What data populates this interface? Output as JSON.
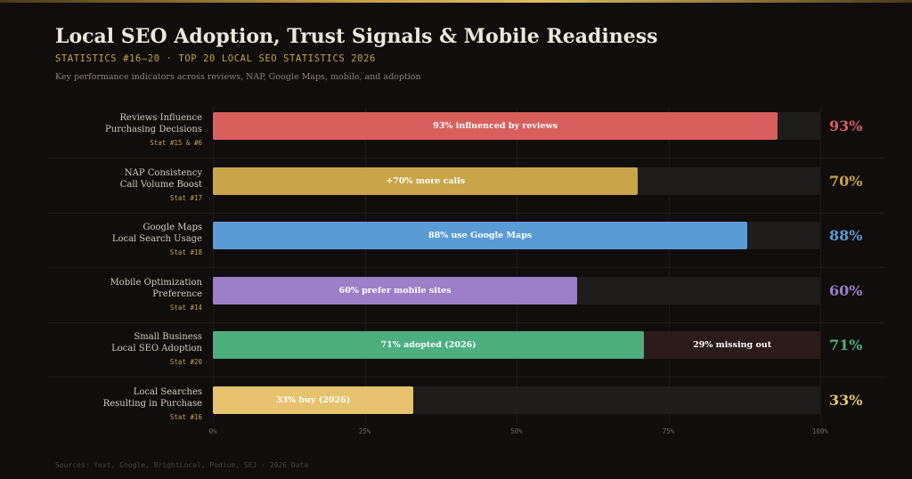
{
  "header": {
    "title": "Local SEO Adoption, Trust Signals & Mobile Readiness",
    "subtitle": "STATISTICS #16–20  ·  TOP 20 LOCAL SEO STATISTICS 2026",
    "description": "Key performance indicators across reviews, NAP, Google Maps, mobile, and adoption"
  },
  "chart_data": {
    "type": "bar",
    "orientation": "horizontal",
    "xlim": [
      0,
      100
    ],
    "x_ticks": [
      "0%",
      "25%",
      "50%",
      "75%",
      "100%"
    ],
    "grid": true,
    "rows": [
      {
        "label_line1": "Reviews Influence",
        "label_line2": "Purchasing Decisions",
        "stat": "Stat #15 & #6",
        "value": 93,
        "bar_text": "93% influenced by reviews",
        "value_label": "93%",
        "color": "#d95f5f"
      },
      {
        "label_line1": "NAP Consistency",
        "label_line2": "Call Volume Boost",
        "stat": "Stat #17",
        "value": 70,
        "bar_text": "+70% more calls",
        "value_label": "70%",
        "color": "#c9a54a"
      },
      {
        "label_line1": "Google Maps",
        "label_line2": "Local Search Usage",
        "stat": "Stat #18",
        "value": 88,
        "bar_text": "88% use Google Maps",
        "value_label": "88%",
        "color": "#5b9bd5"
      },
      {
        "label_line1": "Mobile Optimization",
        "label_line2": "Preference",
        "stat": "Stat #14",
        "value": 60,
        "bar_text": "60% prefer mobile sites",
        "value_label": "60%",
        "color": "#9b7fc8"
      },
      {
        "label_line1": "Small Business",
        "label_line2": "Local SEO Adoption",
        "stat": "Stat #20",
        "value": 71,
        "bar_text": "71% adopted (2026)",
        "value_label": "71%",
        "color": "#4caf7d",
        "rest_text": "29% missing out",
        "rest_color": "#2c1b1b"
      },
      {
        "label_line1": "Local Searches",
        "label_line2": "Resulting in Purchase",
        "stat": "Stat #16",
        "value": 33,
        "bar_text": "33% buy (2026)",
        "value_label": "33%",
        "color": "#e7c36f"
      }
    ]
  },
  "footer": {
    "source": "Sources: Yext, Google, BrightLocal, Podium, SEJ · 2026 Data"
  }
}
